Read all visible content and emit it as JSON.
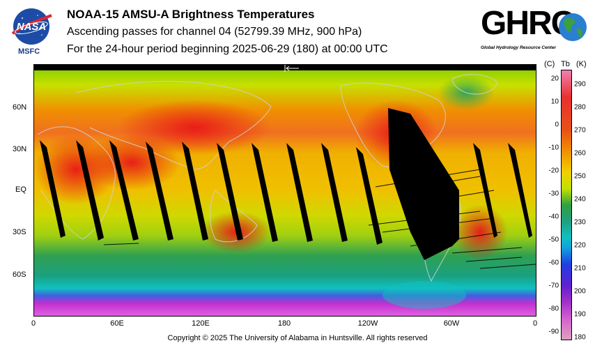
{
  "header": {
    "title": "NOAA-15 AMSU-A Brightness Temperatures",
    "subtitle": "Ascending passes for channel 04 (52799.39 MHz, 900 hPa)",
    "period": "For the 24-hour period beginning 2025-06-29 (180) at 00:00 UTC"
  },
  "logos": {
    "nasa_text": "NASA",
    "msfc_text": "MSFC",
    "ghrc_text": "GHRC",
    "ghrc_subtitle": "Global Hydrology Resource Center"
  },
  "map": {
    "lat_labels": [
      "60N",
      "30N",
      "EQ",
      "30S",
      "60S"
    ],
    "lon_labels": [
      "0",
      "60E",
      "120E",
      "180",
      "120W",
      "60W",
      "0"
    ],
    "colors": {
      "polar_low": "#b030c8",
      "cold": "#10b0b0",
      "cool": "#30a040",
      "mild": "#c0e000",
      "warm": "#f0a000",
      "hot": "#e82020",
      "gap": "#000000",
      "coast": "#c8c8c8"
    }
  },
  "colorbar": {
    "unit_c": "(C)",
    "unit_label": "Tb",
    "unit_k": "(K)",
    "celsius": [
      "20",
      "10",
      "0",
      "-10",
      "-20",
      "-30",
      "-40",
      "-50",
      "-60",
      "-70",
      "-80",
      "-90"
    ],
    "kelvin": [
      "290",
      "280",
      "270",
      "260",
      "250",
      "240",
      "230",
      "220",
      "210",
      "200",
      "190",
      "180"
    ]
  },
  "footer": {
    "copyright": "Copyright © 2025 The University of Alabama in Huntsville.  All rights reserved"
  }
}
